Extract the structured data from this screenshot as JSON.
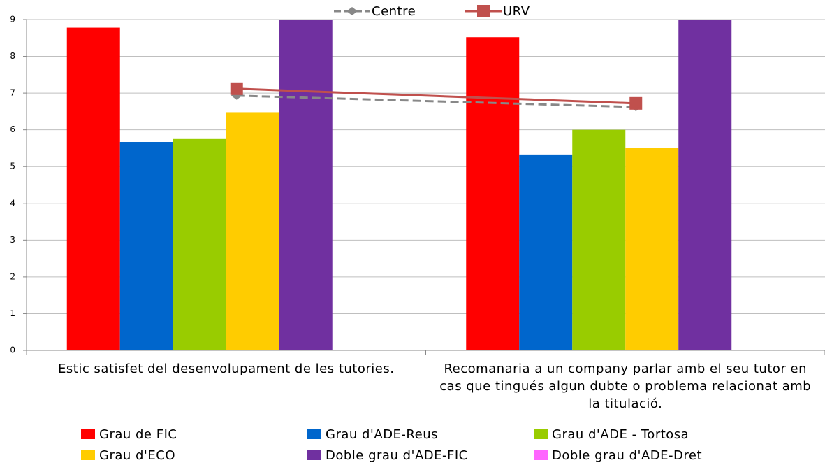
{
  "chart_data": {
    "type": "bar",
    "categories": [
      "Estic satisfet del desenvolupament de les tutories.",
      "Recomanaria a un company parlar amb el seu tutor en cas que tingués algun dubte o problema relacionat amb la titulació."
    ],
    "series": [
      {
        "name": "Grau de FIC",
        "color": "#ff0000",
        "kind": "bar",
        "values": [
          8.78,
          8.52
        ]
      },
      {
        "name": "Grau d'ADE-Reus",
        "color": "#0066cc",
        "kind": "bar",
        "values": [
          5.67,
          5.33
        ]
      },
      {
        "name": "Grau d'ADE - Tortosa",
        "color": "#99cc00",
        "kind": "bar",
        "values": [
          5.75,
          6.0
        ]
      },
      {
        "name": "Grau d'ECO",
        "color": "#ffcc00",
        "kind": "bar",
        "values": [
          6.48,
          5.5
        ]
      },
      {
        "name": "Doble grau d'ADE-FIC",
        "color": "#7030a0",
        "kind": "bar",
        "values": [
          9,
          9
        ]
      },
      {
        "name": "Doble grau d'ADE-Dret",
        "color": "#ff66ff",
        "kind": "bar",
        "values": [
          null,
          null
        ]
      },
      {
        "name": "Centre",
        "color": "#888888",
        "kind": "line",
        "dashed": true,
        "marker": "diamond",
        "values": [
          6.93,
          6.62
        ]
      },
      {
        "name": "URV",
        "color": "#c0504d",
        "kind": "line",
        "dashed": false,
        "marker": "square",
        "values": [
          7.12,
          6.72
        ]
      }
    ],
    "ylim": [
      0,
      9
    ],
    "yticks": [
      0,
      1,
      2,
      3,
      4,
      5,
      6,
      7,
      8,
      9
    ],
    "grid": true
  }
}
